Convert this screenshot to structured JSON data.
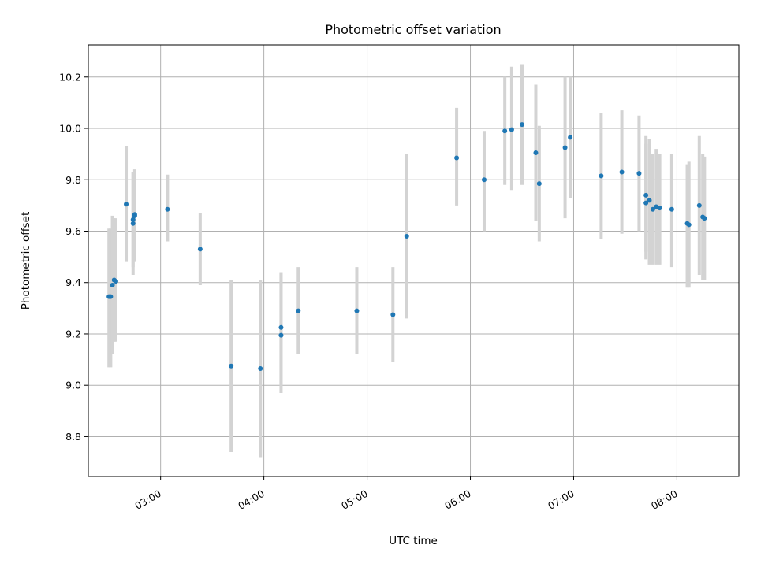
{
  "chart_data": {
    "type": "scatter",
    "title": "Photometric offset variation",
    "xlabel": "UTC time",
    "ylabel": "Photometric offset",
    "x_unit": "UTC time HH:MM",
    "xlim": [
      "02:18",
      "08:36"
    ],
    "ylim": [
      8.645,
      10.325
    ],
    "x_ticks": [
      "03:00",
      "04:00",
      "05:00",
      "06:00",
      "07:00",
      "08:00"
    ],
    "y_ticks": [
      8.8,
      9.0,
      9.2,
      9.4,
      9.6,
      9.8,
      10.0,
      10.2
    ],
    "grid": true,
    "legend": "none",
    "colors": {
      "marker": "#1f77b4",
      "errorbar": "#d3d3d3",
      "grid": "#b0b0b0"
    },
    "series": [
      {
        "x": [
          "02:30",
          "02:31",
          "02:32",
          "02:33",
          "02:34",
          "02:40",
          "02:44",
          "02:44",
          "02:45",
          "02:45",
          "03:04",
          "03:23",
          "03:41",
          "03:58",
          "04:10",
          "04:10",
          "04:20",
          "04:54",
          "05:15",
          "05:23",
          "05:52",
          "06:08",
          "06:20",
          "06:24",
          "06:30",
          "06:38",
          "06:40",
          "06:55",
          "06:58",
          "07:16",
          "07:28",
          "07:38",
          "07:42",
          "07:42",
          "07:44",
          "07:46",
          "07:48",
          "07:50",
          "07:57",
          "08:06",
          "08:07",
          "08:13",
          "08:15",
          "08:16"
        ],
        "y": [
          9.345,
          9.345,
          9.39,
          9.41,
          9.405,
          9.705,
          9.63,
          9.645,
          9.66,
          9.665,
          9.685,
          9.53,
          9.075,
          9.065,
          9.195,
          9.225,
          9.29,
          9.29,
          9.275,
          9.58,
          9.885,
          9.8,
          9.99,
          9.995,
          10.015,
          9.905,
          9.785,
          9.925,
          9.965,
          9.815,
          9.83,
          9.825,
          9.71,
          9.74,
          9.72,
          9.685,
          9.695,
          9.69,
          9.685,
          9.63,
          9.625,
          9.7,
          9.655,
          9.65
        ],
        "y_low": [
          9.07,
          9.07,
          9.12,
          9.17,
          9.17,
          9.48,
          9.43,
          9.46,
          9.48,
          9.49,
          9.56,
          9.39,
          8.74,
          8.72,
          8.97,
          9.0,
          9.12,
          9.12,
          9.09,
          9.26,
          9.7,
          9.6,
          9.78,
          9.76,
          9.78,
          9.64,
          9.56,
          9.65,
          9.73,
          9.57,
          9.59,
          9.6,
          9.49,
          9.52,
          9.47,
          9.47,
          9.47,
          9.47,
          9.46,
          9.38,
          9.38,
          9.43,
          9.41,
          9.41
        ],
        "y_high": [
          9.61,
          9.61,
          9.66,
          9.65,
          9.65,
          9.93,
          9.83,
          9.83,
          9.84,
          9.84,
          9.82,
          9.67,
          9.41,
          9.41,
          9.44,
          9.44,
          9.46,
          9.46,
          9.46,
          9.9,
          10.08,
          9.99,
          10.2,
          10.24,
          10.25,
          10.17,
          10.01,
          10.2,
          10.2,
          10.06,
          10.07,
          10.05,
          9.94,
          9.97,
          9.96,
          9.9,
          9.92,
          9.9,
          9.9,
          9.86,
          9.87,
          9.97,
          9.9,
          9.89
        ]
      }
    ]
  }
}
